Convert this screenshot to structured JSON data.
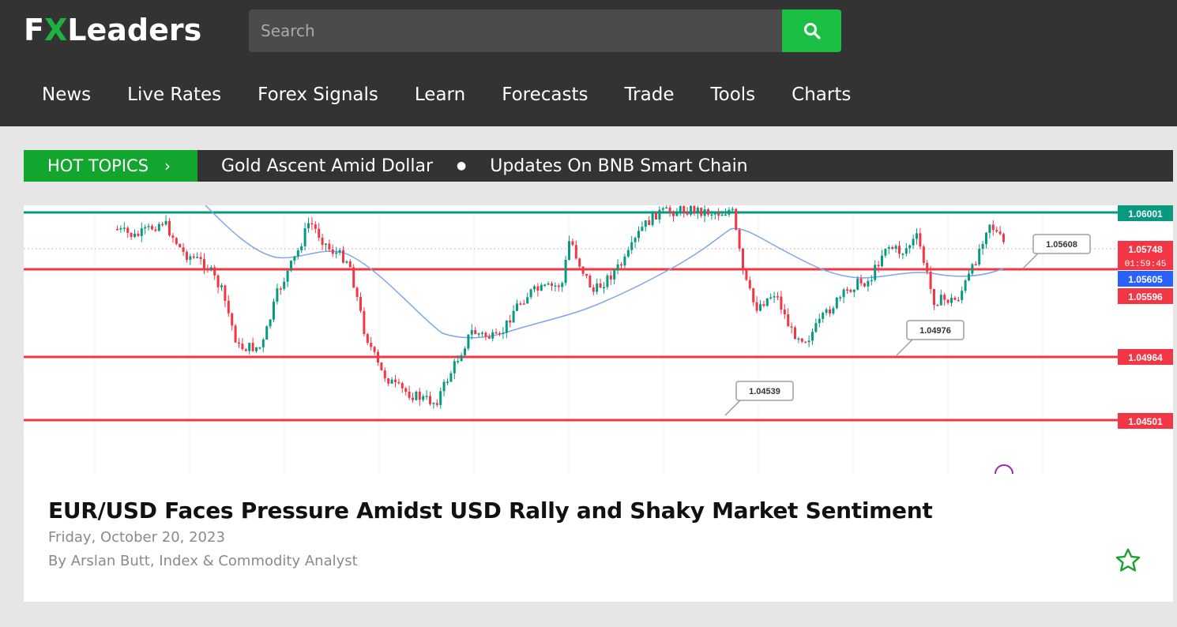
{
  "brand": {
    "logo_text_fx_f": "F",
    "logo_text_fx_x": "X",
    "logo_text_rest": "Leaders"
  },
  "search": {
    "placeholder": "Search"
  },
  "nav": {
    "items": [
      "News",
      "Live Rates",
      "Forex Signals",
      "Learn",
      "Forecasts",
      "Trade",
      "Tools",
      "Charts"
    ]
  },
  "hot_topics": {
    "label": "HOT TOPICS",
    "items": [
      "Gold Ascent Amid Dollar",
      "Updates On BNB Smart Chain"
    ]
  },
  "article": {
    "title": "EUR/USD Faces Pressure Amidst USD Rally and Shaky Market Sentiment",
    "date": "Friday, October 20, 2023",
    "author": "By Arslan Butt, Index & Commodity Analyst"
  },
  "colors": {
    "brand_green": "#1bbf44",
    "header_bg": "#333333",
    "support_red": "#f23645",
    "resistance_teal": "#089981",
    "ma_blue": "#5b8def"
  },
  "chart_data": {
    "type": "candlestick",
    "horizontal_levels": [
      {
        "label": "1.06001",
        "value": 1.06001,
        "color": "#089981"
      },
      {
        "label": "1.05605",
        "value": 1.05605,
        "color": "#f23645"
      },
      {
        "label": "1.04964",
        "value": 1.04964,
        "color": "#f23645"
      },
      {
        "label": "1.04501",
        "value": 1.04501,
        "color": "#f23645"
      }
    ],
    "price_tags": [
      {
        "label": "1.05748",
        "sub": "01:59:45",
        "color": "#f23645"
      },
      {
        "label": "1.05605",
        "color": "#2962ff"
      },
      {
        "label": "1.05596",
        "color": "#f23645"
      }
    ],
    "callouts": [
      "1.05608",
      "1.04976",
      "1.04539"
    ]
  }
}
